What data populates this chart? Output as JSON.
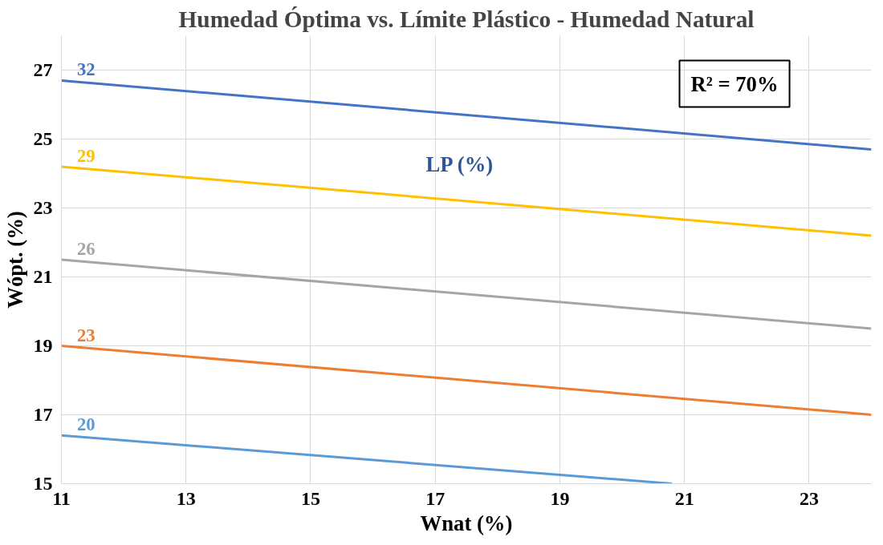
{
  "chart_data": {
    "type": "line",
    "title": "Humedad Óptima vs. Límite Plástico - Humedad Natural",
    "xlabel": "Wnat (%)",
    "ylabel": "Wópt. (%)",
    "xlim": [
      11,
      24
    ],
    "xticks": [
      11,
      13,
      15,
      17,
      19,
      21,
      23
    ],
    "ylim": [
      15,
      28
    ],
    "yticks": [
      15,
      17,
      19,
      21,
      23,
      25,
      27
    ],
    "grid": true,
    "marker": "none",
    "line_style": "solid",
    "annotations": [
      "LP (%)",
      "R² = 70%"
    ],
    "series": [
      {
        "name": "32",
        "color": "#4472c4",
        "x": [
          11,
          24
        ],
        "values": [
          26.7,
          24.7
        ]
      },
      {
        "name": "29",
        "color": "#ffc000",
        "x": [
          11,
          24
        ],
        "values": [
          24.2,
          22.2
        ]
      },
      {
        "name": "26",
        "color": "#a5a5a5",
        "x": [
          11,
          24
        ],
        "values": [
          21.5,
          19.5
        ]
      },
      {
        "name": "23",
        "color": "#ed7d31",
        "x": [
          11,
          24
        ],
        "values": [
          19.0,
          17.0
        ]
      },
      {
        "name": "20",
        "color": "#5b9bd5",
        "x": [
          11,
          20.8
        ],
        "values": [
          16.4,
          15.0
        ]
      }
    ]
  }
}
